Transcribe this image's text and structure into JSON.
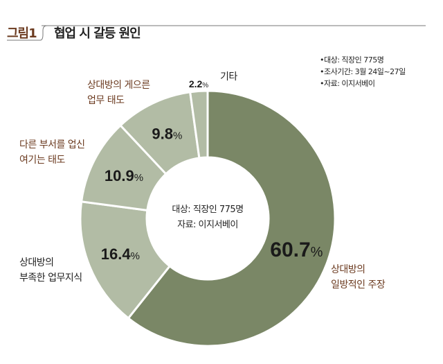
{
  "header": {
    "figure_label": "그림1",
    "title": "협업 시 갈등 원인"
  },
  "notes": [
    "•대상: 직장인 775명",
    "•조사기간: 3월 24일~27일",
    "•자료: 이지서베이"
  ],
  "center_text": [
    "대상: 직장인 775명",
    "자료: 이지서베이"
  ],
  "chart_data": {
    "type": "pie",
    "donut": true,
    "title": "협업 시 갈등 원인",
    "categories": [
      "상대방의 일방적인 주장",
      "상대방의 부족한 업무지식",
      "다른 부서를 업신 여기는 태도",
      "상대방의 게으른 업무 태도",
      "기타"
    ],
    "values": [
      60.7,
      16.4,
      10.9,
      9.8,
      2.2
    ],
    "value_labels": [
      "60.7",
      "16.4",
      "10.9",
      "9.8",
      "2.2"
    ],
    "unit": "%",
    "colors": [
      "#7a8766",
      "#b2bca5",
      "#b2bca5",
      "#b2bca5",
      "#b2bca5"
    ]
  },
  "labels": [
    [
      "상대방의",
      "일방적인 주장"
    ],
    [
      "상대방의",
      "부족한 업무지식"
    ],
    [
      "다른 부서를 업신",
      "여기는 태도"
    ],
    [
      "상대방의 게으른",
      "업무 태도"
    ],
    [
      "기타"
    ]
  ]
}
